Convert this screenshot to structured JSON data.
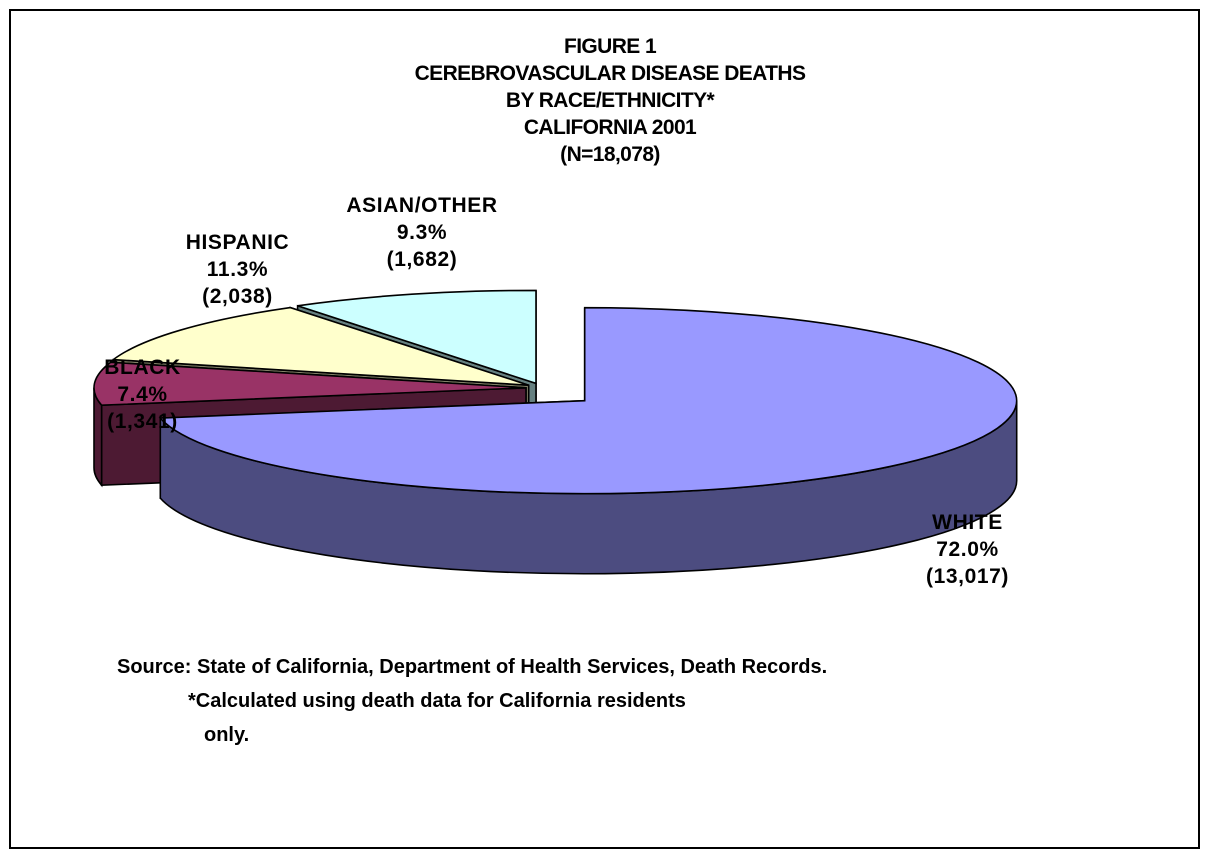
{
  "chart_data": {
    "type": "pie",
    "title_lines": [
      "FIGURE 1",
      "CEREBROVASCULAR DISEASE DEATHS",
      "BY RACE/ETHNICITY*",
      "CALIFORNIA 2001",
      "(N=18,078)"
    ],
    "slices": [
      {
        "label": "WHITE",
        "percent": 72.0,
        "percent_label": "72.0%",
        "count": 13017,
        "count_label": "(13,017)",
        "color": "#9999ff",
        "side_color": "#4c4c80"
      },
      {
        "label": "BLACK",
        "percent": 7.4,
        "percent_label": "7.4%",
        "count": 1341,
        "count_label": "(1,341)",
        "color": "#993366",
        "side_color": "#4d1a33"
      },
      {
        "label": "HISPANIC",
        "percent": 11.3,
        "percent_label": "11.3%",
        "count": 2038,
        "count_label": "(2,038)",
        "color": "#ffffcc",
        "side_color": "#808066"
      },
      {
        "label": "ASIAN/OTHER",
        "percent": 9.3,
        "percent_label": "9.3%",
        "count": 1682,
        "count_label": "(1,682)",
        "color": "#ccffff",
        "side_color": "#668080"
      }
    ],
    "is_3d": true,
    "exploded": true
  },
  "footnotes": {
    "source": "Source: State of California, Department of Health Services, Death Records.",
    "note_line1": "*Calculated using death data for California residents",
    "note_line2": "only."
  }
}
